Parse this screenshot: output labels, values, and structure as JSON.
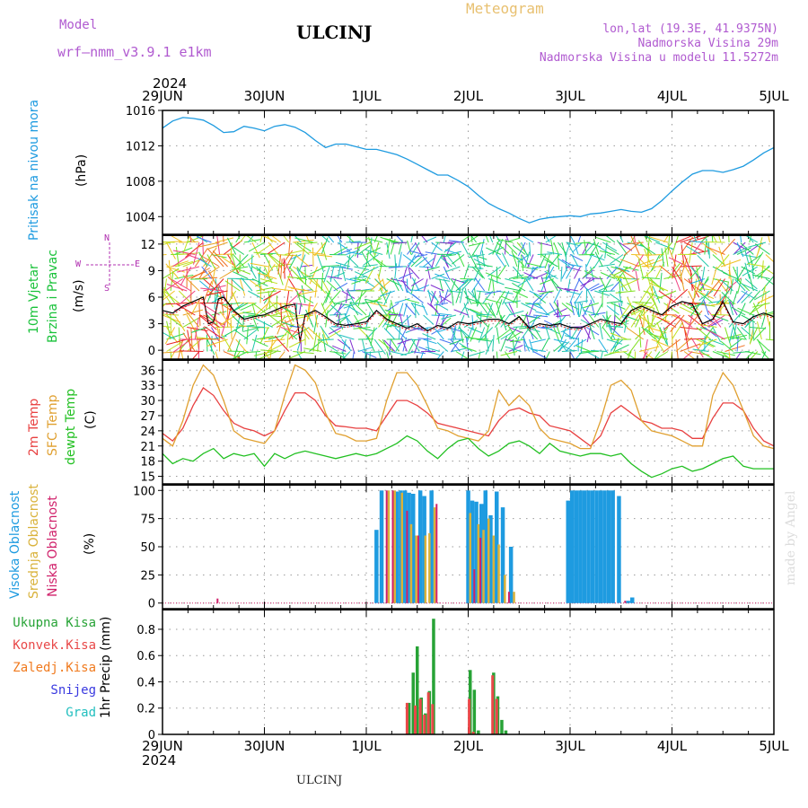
{
  "header": {
    "model_label": "Model",
    "model_name": "wrf–nmm_v3.9.1  e1km",
    "station": "ULCINJ",
    "product": "Meteogram",
    "lonlat": "lon,lat (19.3E, 41.9375N)",
    "elevation": "Nadmorska Visina 29m",
    "model_elevation": "Nadmorska Visina u modelu 11.5272m",
    "year_top": "2024",
    "year_bottom": "2024",
    "footer_station": "ULCINJ",
    "watermark": "made by Angel"
  },
  "colors": {
    "pressure": "#1e9be0",
    "wind_label": "#19c23a",
    "temp2m": "#e84040",
    "sfc": "#e0a030",
    "dew": "#22c022",
    "high_cloud": "#1e9be0",
    "mid_cloud": "#d9b23a",
    "low_cloud": "#d0206a",
    "total_precip": "#27a336",
    "conv_precip": "#e84848",
    "frozen_precip": "#f07a1e",
    "snow": "#3a3ae0",
    "graupel": "#22bfbf",
    "compass": "#b030b0"
  },
  "chart_data": [
    {
      "type": "line",
      "id": "pressure",
      "x_categories": [
        "29JUN",
        "30JUN",
        "1JUL",
        "2JUL",
        "3JUL",
        "4JUL",
        "5JUL"
      ],
      "ylabel": [
        "Pritisak na nivou mora",
        "(hPa)"
      ],
      "ylim": [
        1002,
        1016
      ],
      "yticks": [
        1004,
        1008,
        1012,
        1016
      ],
      "series": [
        {
          "x": [
            0,
            0.1,
            0.2,
            0.3,
            0.4,
            0.5,
            0.6,
            0.7,
            0.8,
            0.9,
            1.0,
            1.1,
            1.2,
            1.3,
            1.4,
            1.5,
            1.6,
            1.7,
            1.8,
            1.9,
            2.0,
            2.1,
            2.2,
            2.3,
            2.4,
            2.5,
            2.6,
            2.7,
            2.8,
            2.9,
            3.0,
            3.1,
            3.2,
            3.3,
            3.4,
            3.5,
            3.6,
            3.7,
            3.8,
            3.9,
            4.0,
            4.1,
            4.2,
            4.3,
            4.4,
            4.5,
            4.6,
            4.7,
            4.8,
            4.9,
            5.0,
            5.1,
            5.2,
            5.3,
            5.4,
            5.5,
            5.6,
            5.7,
            5.8,
            5.9,
            6.0
          ],
          "y": [
            1014.0,
            1014.8,
            1015.2,
            1015.1,
            1014.9,
            1014.3,
            1013.5,
            1013.6,
            1014.2,
            1014.0,
            1013.7,
            1014.2,
            1014.4,
            1014.1,
            1013.5,
            1012.6,
            1011.8,
            1012.2,
            1012.2,
            1011.9,
            1011.6,
            1011.6,
            1011.3,
            1011.0,
            1010.5,
            1009.9,
            1009.3,
            1008.7,
            1008.7,
            1008.1,
            1007.4,
            1006.4,
            1005.5,
            1004.9,
            1004.4,
            1003.8,
            1003.3,
            1003.7,
            1003.9,
            1004.0,
            1004.1,
            1004.0,
            1004.3,
            1004.4,
            1004.6,
            1004.8,
            1004.6,
            1004.5,
            1004.9,
            1005.8,
            1006.9,
            1007.9,
            1008.8,
            1009.2,
            1009.2,
            1009.0,
            1009.3,
            1009.7,
            1010.4,
            1011.2,
            1011.8
          ]
        }
      ]
    },
    {
      "type": "line",
      "id": "wind",
      "ylabel": [
        "10m Vjetar",
        "Brzina i Pravac",
        "(m/s)"
      ],
      "compass": {
        "n": "N",
        "s": "S",
        "e": "E",
        "w": "W"
      },
      "ylim": [
        -1,
        13
      ],
      "yticks": [
        0,
        3,
        6,
        9,
        12
      ],
      "series": [
        {
          "x": [
            0,
            0.1,
            0.2,
            0.3,
            0.4,
            0.45,
            0.5,
            0.55,
            0.6,
            0.7,
            0.8,
            0.9,
            1.0,
            1.1,
            1.2,
            1.3,
            1.35,
            1.4,
            1.5,
            1.6,
            1.7,
            1.8,
            1.9,
            2.0,
            2.1,
            2.2,
            2.3,
            2.4,
            2.5,
            2.6,
            2.7,
            2.8,
            2.9,
            3.0,
            3.1,
            3.2,
            3.3,
            3.4,
            3.5,
            3.6,
            3.7,
            3.8,
            3.9,
            4.0,
            4.1,
            4.2,
            4.3,
            4.4,
            4.5,
            4.6,
            4.7,
            4.8,
            4.9,
            5.0,
            5.1,
            5.2,
            5.3,
            5.4,
            5.5,
            5.6,
            5.7,
            5.8,
            5.9,
            6.0
          ],
          "y": [
            4.5,
            4.2,
            5.0,
            5.5,
            6.0,
            3.0,
            3.2,
            5.8,
            6.0,
            4.5,
            3.5,
            3.8,
            4.0,
            4.5,
            5.0,
            5.2,
            1.0,
            4.0,
            4.5,
            3.8,
            3.0,
            2.8,
            3.0,
            3.2,
            4.5,
            3.5,
            3.0,
            2.5,
            3.0,
            2.2,
            2.8,
            2.5,
            3.2,
            3.0,
            3.2,
            3.5,
            3.5,
            3.0,
            3.8,
            2.5,
            3.0,
            2.8,
            3.0,
            2.6,
            2.5,
            3.0,
            3.5,
            3.2,
            3.0,
            4.5,
            5.0,
            4.5,
            4.0,
            5.0,
            5.5,
            5.2,
            3.0,
            3.5,
            5.5,
            3.2,
            3.0,
            3.8,
            4.2,
            3.8
          ]
        }
      ]
    },
    {
      "type": "line",
      "id": "temperature",
      "ylabel": [
        "2m Temp",
        "SFC Temp",
        "dewpt Temp",
        "(C)"
      ],
      "ylim": [
        13.5,
        38
      ],
      "yticks": [
        15,
        18,
        21,
        24,
        27,
        30,
        33,
        36
      ],
      "series": [
        {
          "name": "2m Temp",
          "x": [
            0,
            0.1,
            0.2,
            0.3,
            0.4,
            0.5,
            0.6,
            0.7,
            0.8,
            0.9,
            1.0,
            1.1,
            1.2,
            1.3,
            1.4,
            1.5,
            1.6,
            1.7,
            1.8,
            1.9,
            2.0,
            2.1,
            2.2,
            2.3,
            2.4,
            2.5,
            2.6,
            2.7,
            2.8,
            2.9,
            3.0,
            3.1,
            3.2,
            3.3,
            3.4,
            3.5,
            3.6,
            3.7,
            3.8,
            3.9,
            4.0,
            4.1,
            4.2,
            4.3,
            4.4,
            4.5,
            4.6,
            4.7,
            4.8,
            4.9,
            5.0,
            5.1,
            5.2,
            5.3,
            5.4,
            5.5,
            5.6,
            5.7,
            5.8,
            5.9,
            6.0
          ],
          "y": [
            23.5,
            22.0,
            24.5,
            29.0,
            32.5,
            31.0,
            28.0,
            25.5,
            24.5,
            24.0,
            23.0,
            24.0,
            28.0,
            31.5,
            31.5,
            30.0,
            27.0,
            25.0,
            24.8,
            24.5,
            24.5,
            24.0,
            27.0,
            30.0,
            30.0,
            29.0,
            27.5,
            25.5,
            25.0,
            24.5,
            24.0,
            23.5,
            23.0,
            26.0,
            28.0,
            28.5,
            27.5,
            27.0,
            25.0,
            24.5,
            24.0,
            22.5,
            21.0,
            23.0,
            27.5,
            29.0,
            27.5,
            26.0,
            25.5,
            24.5,
            24.5,
            24.0,
            22.5,
            22.5,
            26.5,
            29.5,
            29.5,
            28.0,
            24.5,
            22.0,
            21.0
          ]
        },
        {
          "name": "SFC Temp",
          "x": [
            0,
            0.1,
            0.2,
            0.3,
            0.4,
            0.5,
            0.6,
            0.7,
            0.8,
            0.9,
            1.0,
            1.1,
            1.2,
            1.3,
            1.4,
            1.5,
            1.6,
            1.7,
            1.8,
            1.9,
            2.0,
            2.1,
            2.2,
            2.3,
            2.4,
            2.5,
            2.6,
            2.7,
            2.8,
            2.9,
            3.0,
            3.1,
            3.2,
            3.3,
            3.4,
            3.5,
            3.6,
            3.7,
            3.8,
            3.9,
            4.0,
            4.1,
            4.2,
            4.3,
            4.4,
            4.5,
            4.6,
            4.7,
            4.8,
            4.9,
            5.0,
            5.1,
            5.2,
            5.3,
            5.4,
            5.5,
            5.6,
            5.7,
            5.8,
            5.9,
            6.0
          ],
          "y": [
            22.5,
            21.0,
            26.0,
            33.0,
            37.0,
            35.0,
            30.0,
            24.0,
            22.5,
            22.0,
            21.5,
            24.0,
            31.0,
            37.0,
            36.0,
            33.5,
            27.5,
            23.5,
            23.0,
            22.0,
            22.0,
            22.5,
            30.0,
            35.5,
            35.5,
            33.0,
            29.0,
            24.5,
            24.0,
            23.0,
            22.5,
            22.0,
            24.0,
            32.0,
            29.0,
            31.0,
            29.0,
            24.5,
            22.5,
            22.0,
            21.5,
            20.5,
            20.5,
            26.0,
            33.0,
            34.0,
            32.0,
            26.0,
            24.0,
            23.5,
            23.0,
            22.0,
            21.0,
            21.0,
            31.0,
            35.5,
            33.0,
            28.0,
            23.0,
            21.0,
            20.5
          ]
        },
        {
          "name": "dewpt Temp",
          "x": [
            0,
            0.1,
            0.2,
            0.3,
            0.4,
            0.5,
            0.6,
            0.7,
            0.8,
            0.9,
            1.0,
            1.1,
            1.2,
            1.3,
            1.4,
            1.5,
            1.6,
            1.7,
            1.8,
            1.9,
            2.0,
            2.1,
            2.2,
            2.3,
            2.4,
            2.5,
            2.6,
            2.7,
            2.8,
            2.9,
            3.0,
            3.1,
            3.2,
            3.3,
            3.4,
            3.5,
            3.6,
            3.7,
            3.8,
            3.9,
            4.0,
            4.1,
            4.2,
            4.3,
            4.4,
            4.5,
            4.6,
            4.7,
            4.8,
            4.9,
            5.0,
            5.1,
            5.2,
            5.3,
            5.4,
            5.5,
            5.6,
            5.7,
            5.8,
            5.9,
            6.0
          ],
          "y": [
            19.5,
            17.5,
            18.5,
            18.0,
            19.5,
            20.5,
            18.5,
            19.5,
            19.0,
            19.5,
            17.0,
            19.5,
            18.5,
            19.5,
            20.0,
            19.5,
            19.0,
            18.5,
            19.0,
            19.5,
            19.0,
            19.5,
            20.5,
            21.5,
            23.0,
            22.0,
            20.0,
            18.5,
            20.5,
            22.0,
            22.5,
            20.5,
            19.0,
            20.0,
            21.5,
            22.0,
            21.0,
            19.5,
            21.5,
            20.0,
            19.5,
            19.0,
            19.5,
            19.5,
            19.0,
            19.5,
            17.5,
            16.0,
            14.8,
            15.5,
            16.5,
            17.0,
            16.0,
            16.5,
            17.5,
            18.5,
            19.0,
            17.0,
            16.5,
            16.5,
            16.5
          ]
        }
      ]
    },
    {
      "type": "bar",
      "id": "cloud",
      "ylabel": [
        "Visoka Oblacnost",
        "Srednja Oblacnost",
        "Niska Oblacnost",
        "(%)"
      ],
      "ylim": [
        -5,
        105
      ],
      "yticks": [
        0,
        25,
        50,
        75,
        100
      ],
      "series": [
        {
          "name": "Visoka Oblacnost",
          "x": [
            2.1,
            2.15,
            2.3,
            2.34,
            2.38,
            2.42,
            2.46,
            2.53,
            2.57,
            2.64,
            3.0,
            3.04,
            3.08,
            3.13,
            3.17,
            3.22,
            3.28,
            3.34,
            3.42,
            3.98,
            4.02,
            4.06,
            4.1,
            4.14,
            4.18,
            4.22,
            4.26,
            4.3,
            4.34,
            4.38,
            4.42,
            4.48,
            4.57,
            4.61
          ],
          "y": [
            65,
            100,
            99,
            100,
            100,
            98,
            97,
            100,
            95,
            100,
            100,
            91,
            90,
            88,
            100,
            78,
            99,
            85,
            50,
            91,
            100,
            100,
            100,
            100,
            100,
            100,
            100,
            100,
            100,
            100,
            100,
            95,
            2,
            5
          ]
        },
        {
          "name": "Srednja Oblacnost",
          "x": [
            2.22,
            2.28,
            2.35,
            2.44,
            2.49,
            2.58,
            2.62,
            2.67,
            3.02,
            3.1,
            3.15,
            3.2,
            3.25,
            3.3,
            3.36,
            3.45
          ],
          "y": [
            100,
            100,
            98,
            70,
            60,
            60,
            62,
            85,
            80,
            70,
            65,
            75,
            60,
            52,
            25,
            10
          ]
        },
        {
          "name": "Niska Oblacnost",
          "x": [
            0.54,
            2.2,
            2.26,
            2.4,
            2.51,
            2.69,
            3.06,
            3.12,
            3.4,
            4.54
          ],
          "y": [
            4,
            100,
            100,
            82,
            60,
            88,
            30,
            58,
            10,
            2
          ]
        }
      ]
    },
    {
      "type": "bar",
      "id": "precip",
      "ylabel": [
        "1hr Precip (mm)"
      ],
      "legend": [
        "Ukupna Kisa",
        "Konvek.Kisa",
        "Zaledj.Kisa",
        "Snijeg",
        "Grad"
      ],
      "ylim": [
        0,
        0.95
      ],
      "yticks": [
        0,
        0.2,
        0.4,
        0.6,
        0.8
      ],
      "series": [
        {
          "name": "Ukupna Kisa",
          "x": [
            2.42,
            2.46,
            2.5,
            2.54,
            2.58,
            2.62,
            2.66,
            3.02,
            3.06,
            3.1,
            3.25,
            3.29,
            3.33,
            3.37
          ],
          "y": [
            0.24,
            0.47,
            0.67,
            0.28,
            0.16,
            0.33,
            0.88,
            0.49,
            0.34,
            0.03,
            0.47,
            0.29,
            0.11,
            0.03
          ]
        },
        {
          "name": "Konvek.Kisa",
          "x": [
            2.4,
            2.48,
            2.53,
            2.57,
            2.61,
            2.65,
            3.01,
            3.05,
            3.24,
            3.28
          ],
          "y": [
            0.24,
            0.22,
            0.27,
            0.15,
            0.32,
            0.23,
            0.27,
            0.02,
            0.45,
            0.27
          ]
        }
      ]
    }
  ]
}
